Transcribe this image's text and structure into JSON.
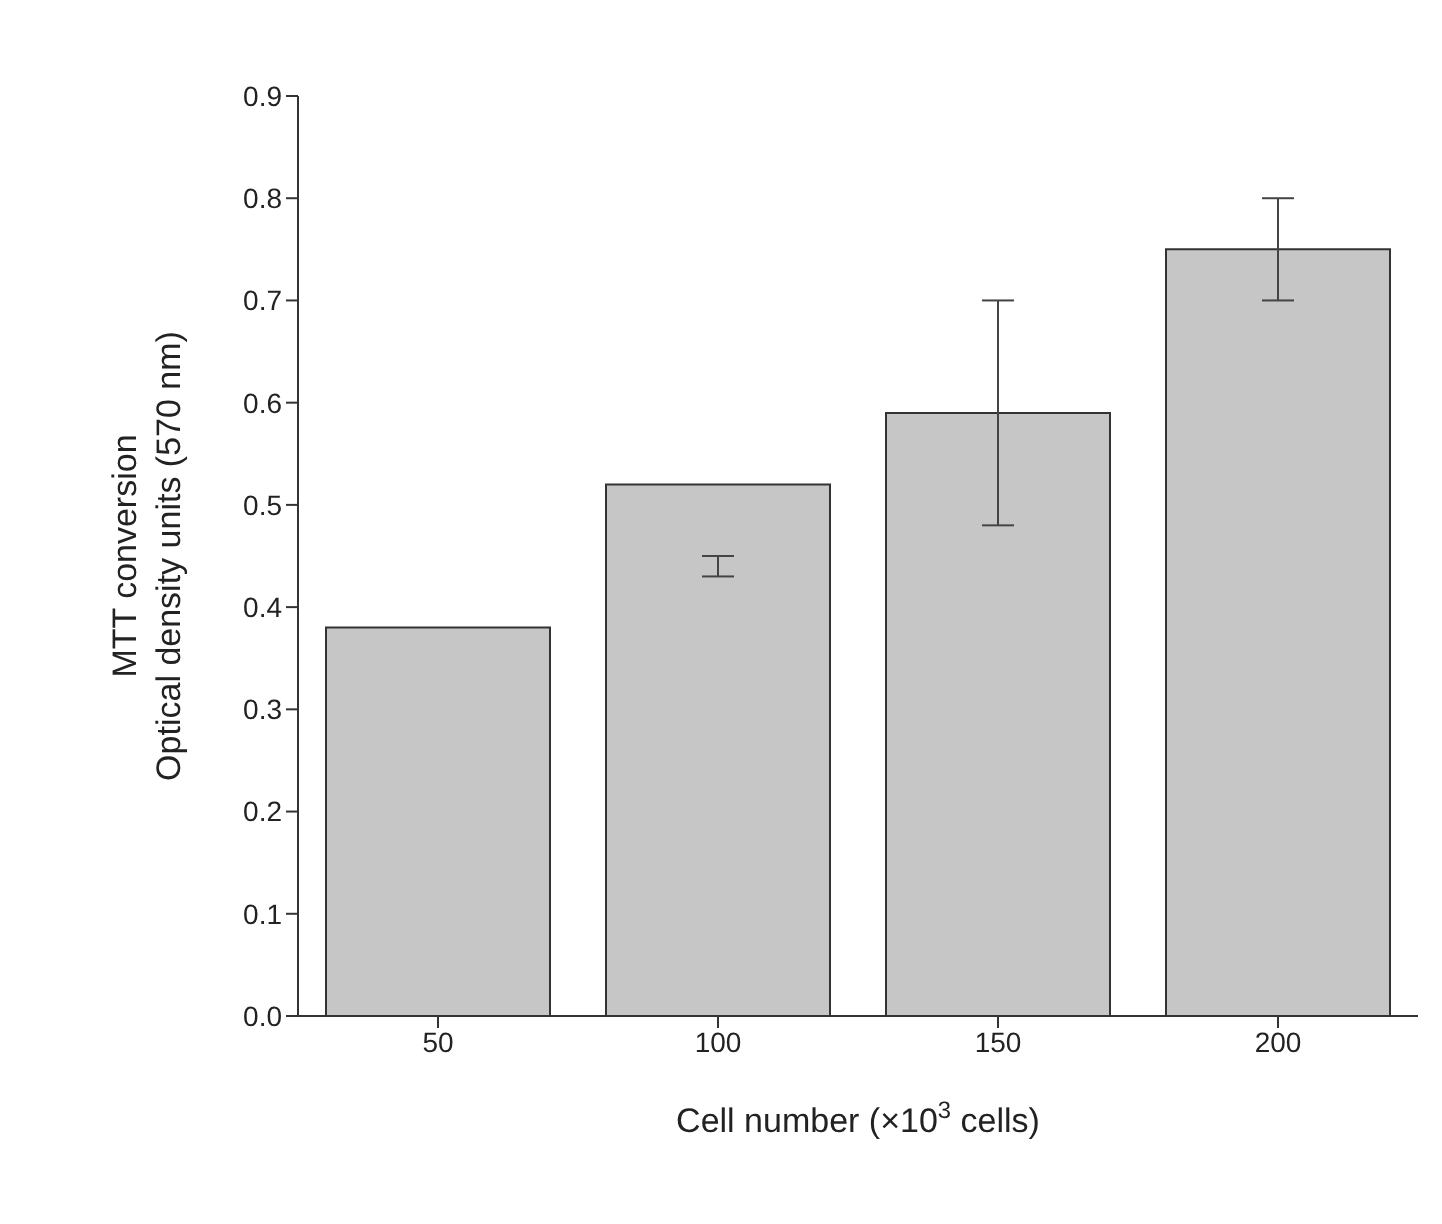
{
  "chart_data": {
    "type": "bar",
    "categories": [
      "50",
      "100",
      "150",
      "200"
    ],
    "values": [
      0.38,
      0.52,
      0.59,
      0.75
    ],
    "errors": [
      null,
      [
        0.43,
        0.45
      ],
      [
        0.48,
        0.7
      ],
      [
        0.7,
        0.8
      ]
    ],
    "color": "#c6c6c6",
    "xlabel": "Cell number (×10$^{3}$ cells)",
    "ylabel": "MTT conversion\nOptical density units (570 nm)",
    "ylim": [
      0,
      0.9
    ],
    "yticks": [
      {
        "value": 0,
        "label": "0.0"
      },
      0.1,
      0.2,
      0.3,
      0.4,
      0.5,
      0.6,
      0.7,
      0.8,
      0.9
    ],
    "grid": false,
    "legend": false
  }
}
